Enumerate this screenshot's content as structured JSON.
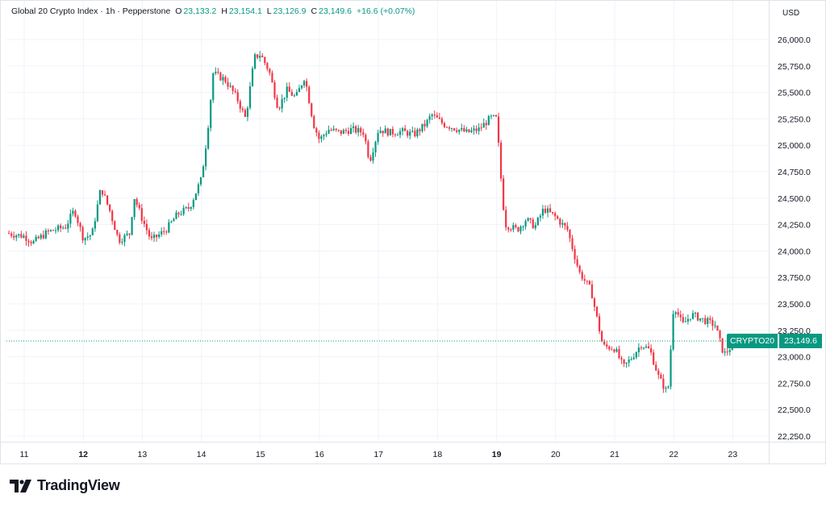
{
  "header": {
    "title": "Global 20 Crypto Index · 1h · Pepperstone",
    "open_label": "O",
    "open_value": "23,133.2",
    "high_label": "H",
    "high_value": "23,154.1",
    "low_label": "L",
    "low_value": "23,126.9",
    "close_label": "C",
    "close_value": "23,149.6",
    "change": "+16.6 (+0.07%)"
  },
  "currency_button": "USD",
  "price_badge": {
    "symbol": "CRYPTO20",
    "price": "23,149.6"
  },
  "branding": {
    "name": "TradingView"
  },
  "colors": {
    "up": "#089981",
    "down": "#f23645",
    "grid": "#f0f3fa",
    "text": "#131722"
  },
  "chart_data": {
    "type": "candlestick",
    "ylim": [
      22150,
      26250
    ],
    "y_ticks": [
      {
        "label": "26,000.0",
        "value": 26000
      },
      {
        "label": "25,750.0",
        "value": 25750
      },
      {
        "label": "25,500.0",
        "value": 25500
      },
      {
        "label": "25,250.0",
        "value": 25250
      },
      {
        "label": "25,000.0",
        "value": 25000
      },
      {
        "label": "24,750.0",
        "value": 24750
      },
      {
        "label": "24,500.0",
        "value": 24500
      },
      {
        "label": "24,250.0",
        "value": 24250
      },
      {
        "label": "24,000.0",
        "value": 24000
      },
      {
        "label": "23,750.0",
        "value": 23750
      },
      {
        "label": "23,500.0",
        "value": 23500
      },
      {
        "label": "23,250.0",
        "value": 23250
      },
      {
        "label": "23,000.0",
        "value": 23000
      },
      {
        "label": "22,750.0",
        "value": 22750
      },
      {
        "label": "22,500.0",
        "value": 22500
      },
      {
        "label": "22,250.0",
        "value": 22250
      }
    ],
    "x_ticks": [
      {
        "label": "11",
        "day": 11,
        "bold": false
      },
      {
        "label": "12",
        "day": 12,
        "bold": true
      },
      {
        "label": "13",
        "day": 13,
        "bold": false
      },
      {
        "label": "14",
        "day": 14,
        "bold": false
      },
      {
        "label": "15",
        "day": 15,
        "bold": false
      },
      {
        "label": "16",
        "day": 16,
        "bold": false
      },
      {
        "label": "17",
        "day": 17,
        "bold": false
      },
      {
        "label": "18",
        "day": 18,
        "bold": false
      },
      {
        "label": "19",
        "day": 19,
        "bold": true
      },
      {
        "label": "20",
        "day": 20,
        "bold": false
      },
      {
        "label": "21",
        "day": 21,
        "bold": false
      },
      {
        "label": "22",
        "day": 22,
        "bold": false
      },
      {
        "label": "23",
        "day": 23,
        "bold": false
      }
    ],
    "x_range_days": [
      10.7,
      23.6
    ],
    "last_price": 23149.6,
    "close_path": [
      [
        10.7,
        24170
      ],
      [
        11.0,
        24140
      ],
      [
        11.15,
        24080
      ],
      [
        11.4,
        24180
      ],
      [
        11.7,
        24230
      ],
      [
        11.85,
        24390
      ],
      [
        12.0,
        24120
      ],
      [
        12.15,
        24160
      ],
      [
        12.3,
        24600
      ],
      [
        12.45,
        24380
      ],
      [
        12.6,
        24100
      ],
      [
        12.8,
        24170
      ],
      [
        12.85,
        24530
      ],
      [
        13.0,
        24300
      ],
      [
        13.15,
        24100
      ],
      [
        13.4,
        24200
      ],
      [
        13.6,
        24350
      ],
      [
        13.8,
        24410
      ],
      [
        14.0,
        24680
      ],
      [
        14.1,
        25100
      ],
      [
        14.2,
        25680
      ],
      [
        14.4,
        25620
      ],
      [
        14.6,
        25450
      ],
      [
        14.75,
        25250
      ],
      [
        14.9,
        25830
      ],
      [
        15.0,
        25860
      ],
      [
        15.15,
        25700
      ],
      [
        15.3,
        25350
      ],
      [
        15.45,
        25520
      ],
      [
        15.6,
        25450
      ],
      [
        15.75,
        25650
      ],
      [
        15.9,
        25200
      ],
      [
        16.0,
        25050
      ],
      [
        16.15,
        25150
      ],
      [
        16.35,
        25120
      ],
      [
        16.55,
        25150
      ],
      [
        16.75,
        25120
      ],
      [
        16.85,
        24850
      ],
      [
        17.0,
        25150
      ],
      [
        17.2,
        25120
      ],
      [
        17.4,
        25130
      ],
      [
        17.6,
        25100
      ],
      [
        17.8,
        25200
      ],
      [
        17.9,
        25290
      ],
      [
        18.1,
        25200
      ],
      [
        18.3,
        25160
      ],
      [
        18.5,
        25120
      ],
      [
        18.7,
        25150
      ],
      [
        18.9,
        25260
      ],
      [
        19.0,
        25250
      ],
      [
        19.1,
        24500
      ],
      [
        19.15,
        24250
      ],
      [
        19.35,
        24200
      ],
      [
        19.5,
        24300
      ],
      [
        19.65,
        24230
      ],
      [
        19.8,
        24400
      ],
      [
        20.0,
        24320
      ],
      [
        20.2,
        24200
      ],
      [
        20.4,
        23800
      ],
      [
        20.6,
        23630
      ],
      [
        20.8,
        23100
      ],
      [
        21.0,
        23080
      ],
      [
        21.15,
        22900
      ],
      [
        21.3,
        23000
      ],
      [
        21.45,
        23120
      ],
      [
        21.6,
        23060
      ],
      [
        21.75,
        22800
      ],
      [
        21.9,
        22650
      ],
      [
        22.0,
        23500
      ],
      [
        22.15,
        23300
      ],
      [
        22.3,
        23400
      ],
      [
        22.5,
        23350
      ],
      [
        22.7,
        23300
      ],
      [
        22.85,
        23020
      ],
      [
        23.0,
        23110
      ],
      [
        23.15,
        23150
      ]
    ]
  }
}
